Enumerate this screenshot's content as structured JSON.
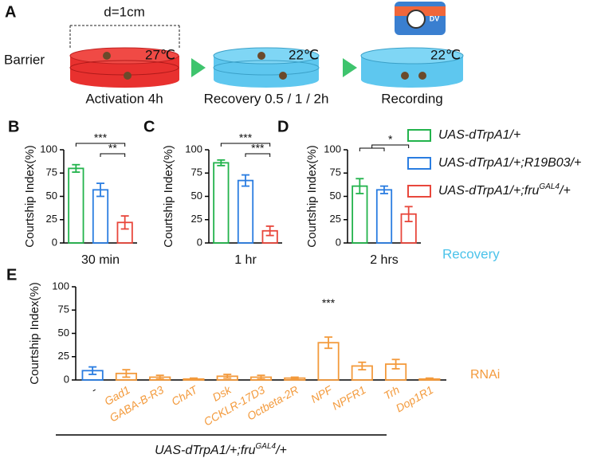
{
  "panel_a": {
    "label": "A",
    "distance": "d=1cm",
    "barrier": "Barrier",
    "temps": [
      "27℃",
      "22℃",
      "22℃"
    ],
    "steps": [
      "Activation 4h",
      "Recovery 0.5 / 1 / 2h",
      "Recording"
    ],
    "camera": "DV"
  },
  "legend": [
    {
      "text": "UAS-dTrpA1/+",
      "color": "#22b34c"
    },
    {
      "text": "UAS-dTrpA1/+;R19B03/+",
      "color": "#2a7de1"
    },
    {
      "text": "UAS-dTrpA1/+;fru",
      "sup": "GAL4",
      "tail": "/+",
      "color": "#e8473c"
    }
  ],
  "recovery_label": "Recovery",
  "chart_data": [
    {
      "type": "bar",
      "panel": "B",
      "ylabel": "Courtship Index(%)",
      "xlabel": "30 min",
      "values": [
        80,
        57,
        22
      ],
      "errors": [
        4,
        7,
        7
      ],
      "colors": [
        "#22b34c",
        "#2a7de1",
        "#e8473c"
      ],
      "annotations": [
        "***",
        "**"
      ],
      "ylim": [
        0,
        100
      ],
      "yticks": [
        0,
        25,
        50,
        75,
        100
      ]
    },
    {
      "type": "bar",
      "panel": "C",
      "ylabel": "Courtship Index(%)",
      "xlabel": "1 hr",
      "values": [
        86,
        67,
        13
      ],
      "errors": [
        3,
        6,
        5
      ],
      "colors": [
        "#22b34c",
        "#2a7de1",
        "#e8473c"
      ],
      "annotations": [
        "***",
        "***"
      ],
      "ylim": [
        0,
        100
      ],
      "yticks": [
        0,
        25,
        50,
        75,
        100
      ]
    },
    {
      "type": "bar",
      "panel": "D",
      "ylabel": "Courtship Index(%)",
      "xlabel": "2 hrs",
      "values": [
        61,
        57,
        31
      ],
      "errors": [
        8,
        4,
        8
      ],
      "colors": [
        "#22b34c",
        "#2a7de1",
        "#e8473c"
      ],
      "annotations": [
        "*"
      ],
      "ylim": [
        0,
        100
      ],
      "yticks": [
        0,
        25,
        50,
        75,
        100
      ]
    },
    {
      "type": "bar",
      "panel": "E",
      "ylabel": "Courtship Index(%)",
      "categories": [
        "-",
        "Gad1",
        "GABA-B-R3",
        "ChAT",
        "Dsk",
        "CCKLR-17D3",
        "Octbeta-2R",
        "NPF",
        "NPFR1",
        "Trh",
        "Dop1R1"
      ],
      "values": [
        10,
        7,
        3,
        1,
        4,
        3,
        2,
        40,
        15,
        17,
        1
      ],
      "errors": [
        4,
        4,
        2,
        1,
        2,
        2,
        1,
        6,
        4,
        5,
        1
      ],
      "colors": [
        "#2a7de1",
        "#f39a3c",
        "#f39a3c",
        "#f39a3c",
        "#f39a3c",
        "#f39a3c",
        "#f39a3c",
        "#f39a3c",
        "#f39a3c",
        "#f39a3c",
        "#f39a3c"
      ],
      "annotations": [
        "***"
      ],
      "label": "RNAi",
      "genotype": {
        "text": "UAS-dTrpA1/+;fru",
        "sup": "GAL4",
        "tail": "/+"
      },
      "ylim": [
        0,
        100
      ],
      "yticks": [
        0,
        25,
        50,
        75,
        100
      ]
    }
  ]
}
